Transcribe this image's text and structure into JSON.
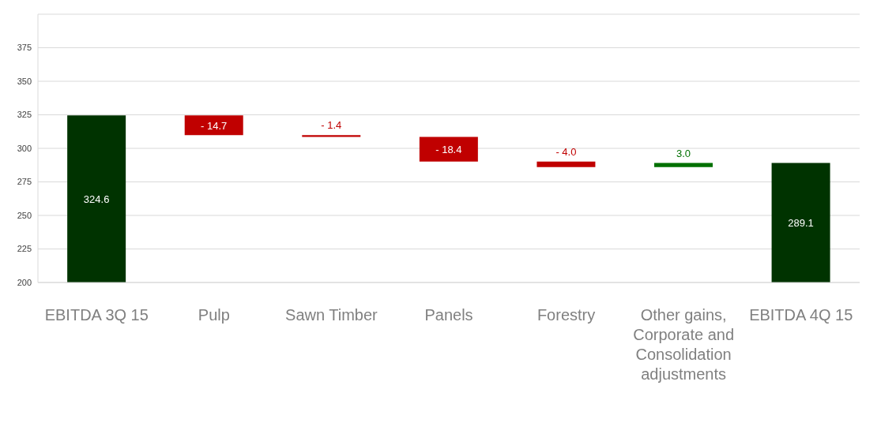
{
  "chart_data": {
    "type": "bar",
    "categories": [
      "EBITDA 3Q 15",
      "Pulp",
      "Sawn Timber",
      "Panels",
      "Forestry",
      "Other gains, Corporate and Consolidation adjustments",
      "EBITDA 4Q 15"
    ],
    "values": [
      324.6,
      -14.7,
      -1.4,
      -18.4,
      -4.0,
      3.0,
      289.1
    ],
    "base": [
      null,
      324.6,
      309.9,
      308.5,
      290.1,
      286.1,
      null
    ],
    "colors": [
      "#003300",
      "#c00000",
      "#c00000",
      "#c00000",
      "#c00000",
      "#007000",
      "#003300"
    ],
    "value_labels": [
      "324.6",
      "- 14.7",
      "- 1.4",
      "- 18.4",
      "- 4.0",
      "3.0",
      "289.1"
    ],
    "ylim": [
      200,
      400
    ],
    "yticks": [
      200,
      225,
      250,
      275,
      300,
      325,
      350,
      375
    ],
    "grid": "y"
  }
}
